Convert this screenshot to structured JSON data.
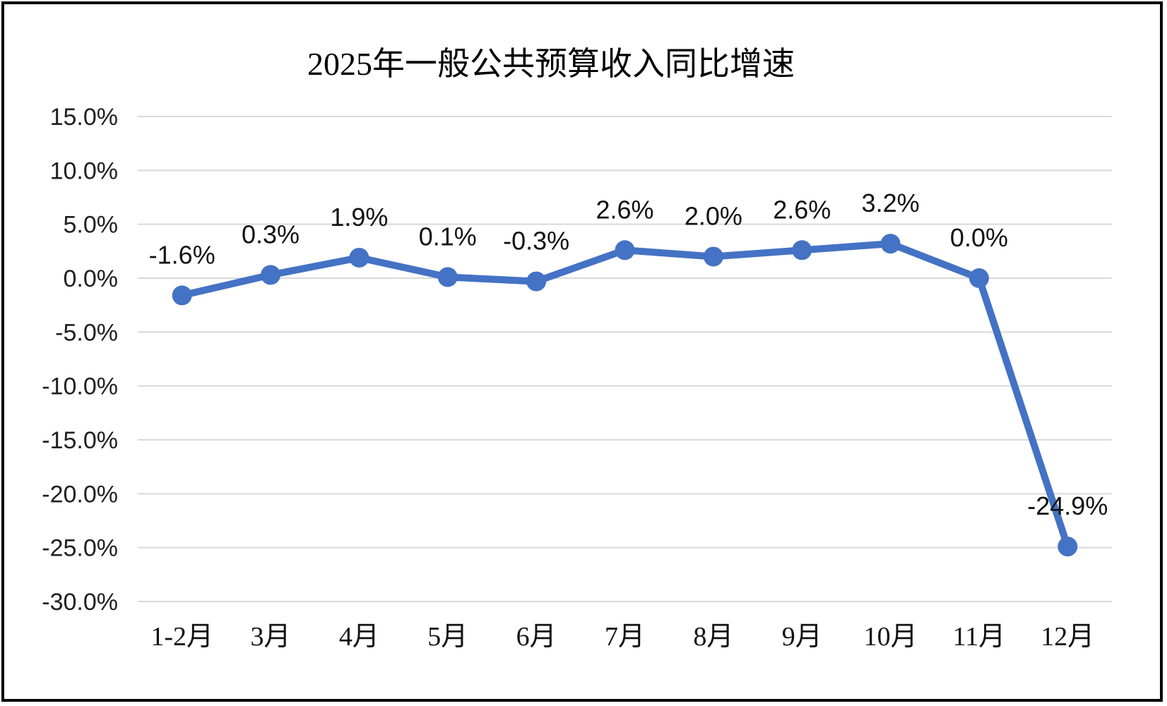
{
  "chart_data": {
    "type": "line",
    "title": "2025年一般公共预算收入同比增速",
    "categories": [
      "1-2月",
      "3月",
      "4月",
      "5月",
      "6月",
      "7月",
      "8月",
      "9月",
      "10月",
      "11月",
      "12月"
    ],
    "values": [
      -1.6,
      0.3,
      1.9,
      0.1,
      -0.3,
      2.6,
      2.0,
      2.6,
      3.2,
      0.0,
      -24.9
    ],
    "data_labels": [
      "-1.6%",
      "0.3%",
      "1.9%",
      "0.1%",
      "-0.3%",
      "2.6%",
      "2.0%",
      "2.6%",
      "3.2%",
      "0.0%",
      "-24.9%"
    ],
    "xlabel": "",
    "ylabel": "",
    "y_axis": {
      "max": 15,
      "min": -30,
      "step": 5,
      "tick_labels": [
        "15.0%",
        "10.0%",
        "5.0%",
        "0.0%",
        "-5.0%",
        "-10.0%",
        "-15.0%",
        "-20.0%",
        "-25.0%",
        "-30.0%"
      ]
    },
    "ylim": [
      -30,
      15
    ],
    "grid": true,
    "legend_position": "none",
    "colors": {
      "line": "#4472C4",
      "marker": "#4472C4",
      "gridline": "#D9D9D9",
      "title_text": "#000000",
      "axis_text": "#1f1f1f",
      "label_text": "#111111",
      "border": "#000000",
      "background": "#FFFFFF"
    }
  }
}
